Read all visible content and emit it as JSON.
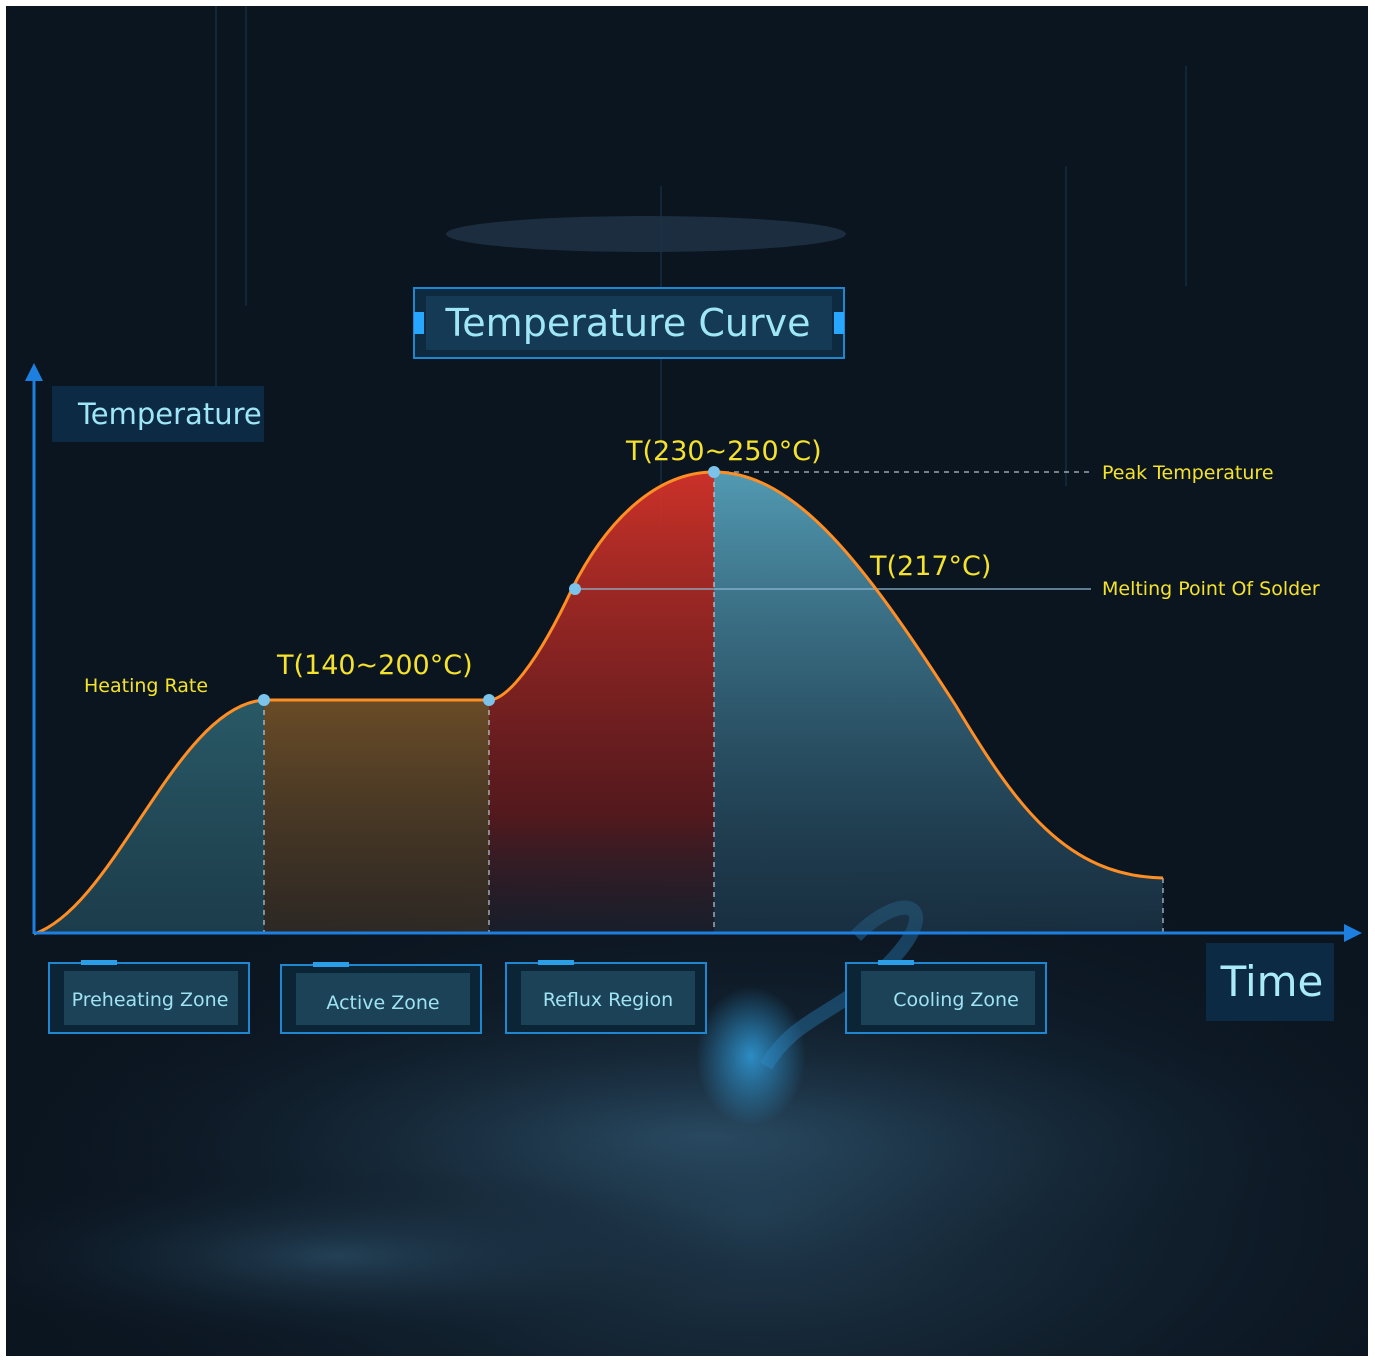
{
  "title": "Temperature Curve",
  "axes": {
    "y_label": "Temperature",
    "x_label": "Time"
  },
  "annotations": {
    "heating_rate": "Heating Rate",
    "active_temp": "T(140~200°C)",
    "peak_temp_value": "T(230~250°C)",
    "peak_temp_label": "Peak Temperature",
    "melting_value": "T(217°C)",
    "melting_label": "Melting Point Of Solder"
  },
  "zones": [
    {
      "label": "Preheating Zone",
      "fill": "#3e8790"
    },
    {
      "label": "Active Zone",
      "fill": "#d98e2a"
    },
    {
      "label": "Reflux Region",
      "fill": "#d6302a"
    },
    {
      "label": "Cooling Zone",
      "fill": "#4f9cb4"
    }
  ],
  "colors": {
    "background": "#0b1520",
    "axis": "#1d7fe0",
    "curve": "#ff8f24",
    "annotation_text": "#f4e22c",
    "label_text": "#cfe8f6",
    "marker": "#7cc3ec"
  }
}
